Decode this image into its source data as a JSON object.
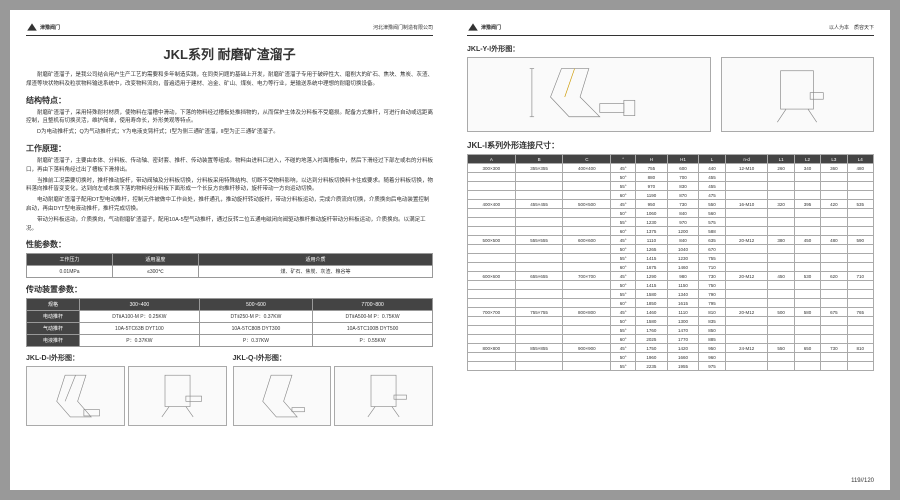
{
  "brand": "津豫阀门",
  "company": "河北津豫阀门制造有限公司",
  "slogan": "以人为本　质容天下",
  "pageNum": "119//120",
  "left": {
    "title": "JKL系列 耐磨矿渣溜子",
    "sections": {
      "intro": [
        "耐磨矿渣溜子，是我公司结合用户生产工艺的需要和多年制造实践，在同类问题的基础上开发，耐磨矿渣溜子专用于破碎性大、磨削大的矿石、焦块、焦炭、灰渣、煤渣等块状物料及粒状物料输送系统中，改变物料流向，普遍适用于建材、冶金、矿山、煤炭、电力等行业，是输送系统中理想的耐磨切换设备。"
      ],
      "struct_h": "结构特点：",
      "struct": [
        "耐磨矿渣溜子，采用特殊耐衬材质，使物料在溜槽中滑动，下落的物料经过槽板处推挡物的，从而保护主体及分料板不受磨损。配备方式推杆，可进行自动或远距离控制，且整机有切换灵活，维护简单，使用寿命长，外形美观等特点。",
        "D为电动推杆式；Q为气动推杆式；Y为电液支臂杆式；Ⅰ型为侧三通矿渣溜，Ⅱ型为正三通矿渣溜子。"
      ],
      "work_h": "工作原理：",
      "work": [
        "耐磨矿渣溜子，主要由本体、分料板、传动轴、密封套、推杆、传动装置等组成。物料由进料口进入，不碰的地落入衬面槽板中，然后下滑经过下部左或右的分料板口，再由下落料角经过出了槽板下滑排出。",
        "当推前工况需要切换时，推杆推动旋杆，带动阀轴及分料板切换，分料板采用特殊结构、切断不受物料影响，以达到分料板切换料卡住成要求。随着分料板切换，物料落向推杆皆变变化，达到向左或右换下落的物料经分料板下面形成一个长反方向推杆移动，旋杆带动一方向运动切换。",
        "电动耐磨矿渣溜子配用DT型电动推杆，控制元件被做中工作台处，推杆通孔，推动旋杆转动旋杆，带动分料板运动，完成介质流向切换，介质换向后电动装置控制启动，再由DYT型电液动推杆，推杆完成切换。",
        "带动分料板运动，介质换向，气动耐磨矿渣溜子，配用10A-5型气动推杆，通过反转二位五通电磁闭向阀驱动推杆推动旋杆带动分料板运动，介质换向。以满足工况。"
      ],
      "perf_h": "性能参数：",
      "trans_h": "传动装置参数：",
      "diagD": "JKL-D-Ⅰ外形图：",
      "diagQ": "JKL-Q-Ⅰ外形图："
    },
    "perf": {
      "headers": [
        "工作压力",
        "适用温度",
        "适用介质"
      ],
      "row": [
        "0.01MPa",
        "≤300℃",
        "煤、矿石、焦炭、灰渣、粮谷等"
      ]
    },
    "trans": {
      "cols": [
        "规格",
        "300~400",
        "500~600",
        "7700~800"
      ],
      "rows": [
        [
          "电动推杆",
          "DTⅡA100-M  P：0.25KW",
          "DTⅡ250-M  P：0.37KW",
          "DTⅡA500-M  P：0.75KW"
        ],
        [
          "气动推杆",
          "10A-5TC63B  DYT100",
          "10A-5TC80B  DYT300",
          "10A-5TC100B  DYT500"
        ],
        [
          "电液推杆",
          "P：0.37KW",
          "P：0.37KW",
          "P：0.55KW"
        ]
      ]
    }
  },
  "right": {
    "diagY": "JKL-Y-Ⅰ外形图：",
    "dim_h": "JKL-Ⅰ系列外形连接尺寸：",
    "dimHeaders": [
      "A",
      "B",
      "C",
      "°",
      "H",
      "H1",
      "L",
      "n-d",
      "L1",
      "L2",
      "L3",
      "L4"
    ],
    "dimRows": [
      [
        "300×300",
        "355×355",
        "400×400",
        "45°",
        "755",
        "600",
        "440",
        "12-M10",
        "260",
        "340",
        "360",
        "480"
      ],
      [
        "",
        "",
        "",
        "50°",
        "880",
        "700",
        "455",
        "",
        "",
        "",
        "",
        ""
      ],
      [
        "",
        "",
        "",
        "55°",
        "970",
        "830",
        "455",
        "",
        "",
        "",
        "",
        ""
      ],
      [
        "",
        "",
        "",
        "60°",
        "1190",
        "870",
        "475",
        "",
        "",
        "",
        "",
        ""
      ],
      [
        "400×400",
        "455×455",
        "500×500",
        "45°",
        "950",
        "730",
        "550",
        "16-M10",
        "320",
        "395",
        "420",
        "535"
      ],
      [
        "",
        "",
        "",
        "50°",
        "1060",
        "840",
        "560",
        "",
        "",
        "",
        "",
        ""
      ],
      [
        "",
        "",
        "",
        "55°",
        "1230",
        "970",
        "575",
        "",
        "",
        "",
        "",
        ""
      ],
      [
        "",
        "",
        "",
        "60°",
        "1375",
        "1200",
        "588",
        "",
        "",
        "",
        "",
        ""
      ],
      [
        "500×500",
        "555×555",
        "600×600",
        "45°",
        "1110",
        "840",
        "635",
        "20-M12",
        "380",
        "450",
        "480",
        "590"
      ],
      [
        "",
        "",
        "",
        "50°",
        "1265",
        "1040",
        "670",
        "",
        "",
        "",
        "",
        ""
      ],
      [
        "",
        "",
        "",
        "55°",
        "1415",
        "1230",
        "755",
        "",
        "",
        "",
        "",
        ""
      ],
      [
        "",
        "",
        "",
        "60°",
        "1675",
        "1460",
        "710",
        "",
        "",
        "",
        "",
        ""
      ],
      [
        "600×600",
        "655×655",
        "700×700",
        "45°",
        "1290",
        "980",
        "730",
        "20-M12",
        "450",
        "530",
        "620",
        "710"
      ],
      [
        "",
        "",
        "",
        "50°",
        "1415",
        "1150",
        "750",
        "",
        "",
        "",
        "",
        ""
      ],
      [
        "",
        "",
        "",
        "55°",
        "1580",
        "1340",
        "790",
        "",
        "",
        "",
        "",
        ""
      ],
      [
        "",
        "",
        "",
        "60°",
        "1850",
        "1615",
        "795",
        "",
        "",
        "",
        "",
        ""
      ],
      [
        "700×700",
        "755×755",
        "800×800",
        "45°",
        "1460",
        "1110",
        "810",
        "20-M12",
        "500",
        "580",
        "675",
        "765"
      ],
      [
        "",
        "",
        "",
        "50°",
        "1580",
        "1300",
        "835",
        "",
        "",
        "",
        "",
        ""
      ],
      [
        "",
        "",
        "",
        "55°",
        "1760",
        "1470",
        "850",
        "",
        "",
        "",
        "",
        ""
      ],
      [
        "",
        "",
        "",
        "60°",
        "2025",
        "1770",
        "885",
        "",
        "",
        "",
        "",
        ""
      ],
      [
        "800×800",
        "855×855",
        "900×900",
        "45°",
        "1750",
        "1420",
        "950",
        "24-M12",
        "550",
        "650",
        "730",
        "810"
      ],
      [
        "",
        "",
        "",
        "50°",
        "1960",
        "1660",
        "960",
        "",
        "",
        "",
        "",
        ""
      ],
      [
        "",
        "",
        "",
        "55°",
        "2235",
        "1955",
        "975",
        "",
        "",
        "",
        "",
        ""
      ]
    ]
  }
}
